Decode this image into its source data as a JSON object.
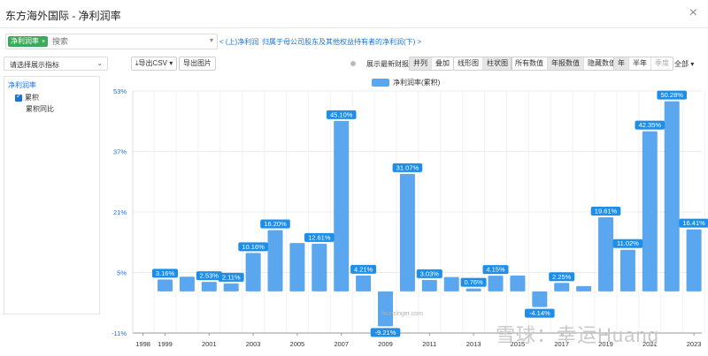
{
  "window": {
    "title": "东方海外国际 - 净利润率",
    "close_glyph": "×"
  },
  "metric_bar": {
    "tag_label": "净利润率",
    "tag_remove": "×",
    "search_placeholder": "搜索",
    "prev_link": "< (上)净利润",
    "next_link": "归属于母公司股东及其他权益持有者的净利润(下) >"
  },
  "indicator_select": {
    "value": "请选择展示指标"
  },
  "tree": {
    "root": "净利润率",
    "checked_item": "累积",
    "sub_item": "累积同比"
  },
  "toolbar": {
    "export_csv": "导出CSV",
    "export_image": "导出图片",
    "show_latest": "展示最新财报",
    "layout_options": [
      "并列",
      "叠加"
    ],
    "layout_active": 0,
    "chart_type_options": [
      "线形图",
      "柱状图"
    ],
    "chart_type_active": 1,
    "data_options": [
      "所有数值",
      "年报数值",
      "隐藏数值"
    ],
    "data_active": 1,
    "period_options": [
      "年",
      "半年",
      "季度"
    ],
    "period_active": 0,
    "range_select": "全部"
  },
  "colors": {
    "bar": "#5aa6ef",
    "label_bg": "#1e8ee8",
    "grid": "#ececec",
    "accent": "#1a73d9"
  },
  "chart_data": {
    "type": "bar",
    "legend": "净利润率(累积)",
    "categories": [
      "1999",
      "2000",
      "2001",
      "2002",
      "2003",
      "2004",
      "2005",
      "2006",
      "2007",
      "2008",
      "2009",
      "2010",
      "2011",
      "2012",
      "2013",
      "2014",
      "2015",
      "2016",
      "2017",
      "2018",
      "2019",
      "2020",
      "2021",
      "2022",
      "2023"
    ],
    "values": [
      3.16,
      3.9,
      2.53,
      2.11,
      10.16,
      16.2,
      12.8,
      12.61,
      45.1,
      4.21,
      -9.21,
      31.07,
      3.03,
      3.8,
      0.76,
      4.15,
      4.2,
      -4.14,
      2.25,
      1.4,
      19.61,
      11.02,
      42.35,
      50.28,
      16.41
    ],
    "data_labels": [
      {
        "index": 0,
        "text": "3.16%"
      },
      {
        "index": 2,
        "text": "2.53%"
      },
      {
        "index": 3,
        "text": "2.11%"
      },
      {
        "index": 4,
        "text": "10.16%"
      },
      {
        "index": 5,
        "text": "16.20%"
      },
      {
        "index": 7,
        "text": "12.61%"
      },
      {
        "index": 8,
        "text": "45.10%"
      },
      {
        "index": 9,
        "text": "4.21%"
      },
      {
        "index": 10,
        "text": "-9.21%"
      },
      {
        "index": 11,
        "text": "31.07%"
      },
      {
        "index": 12,
        "text": "3.03%"
      },
      {
        "index": 14,
        "text": "0.76%"
      },
      {
        "index": 15,
        "text": "4.15%"
      },
      {
        "index": 17,
        "text": "-4.14%"
      },
      {
        "index": 18,
        "text": "2.25%"
      },
      {
        "index": 20,
        "text": "19.61%"
      },
      {
        "index": 21,
        "text": "11.02%"
      },
      {
        "index": 22,
        "text": "42.35%"
      },
      {
        "index": 23,
        "text": "50.28%"
      },
      {
        "index": 24,
        "text": "16.41%"
      }
    ],
    "y_ticks": [
      "53%",
      "37%",
      "21%",
      "5%",
      "-11%"
    ],
    "y_tick_values": [
      53,
      37,
      21,
      5,
      -11
    ],
    "x_tick_labels": [
      "1998",
      "1999",
      "2001",
      "2003",
      "2005",
      "2007",
      "2009",
      "2011",
      "2013",
      "2015",
      "2017",
      "2019",
      "2021",
      "2023"
    ],
    "ylim": [
      -11,
      53
    ],
    "grid": true
  },
  "watermark": {
    "text": "雪球：幸运Huang",
    "small": "licaizinger.com"
  }
}
